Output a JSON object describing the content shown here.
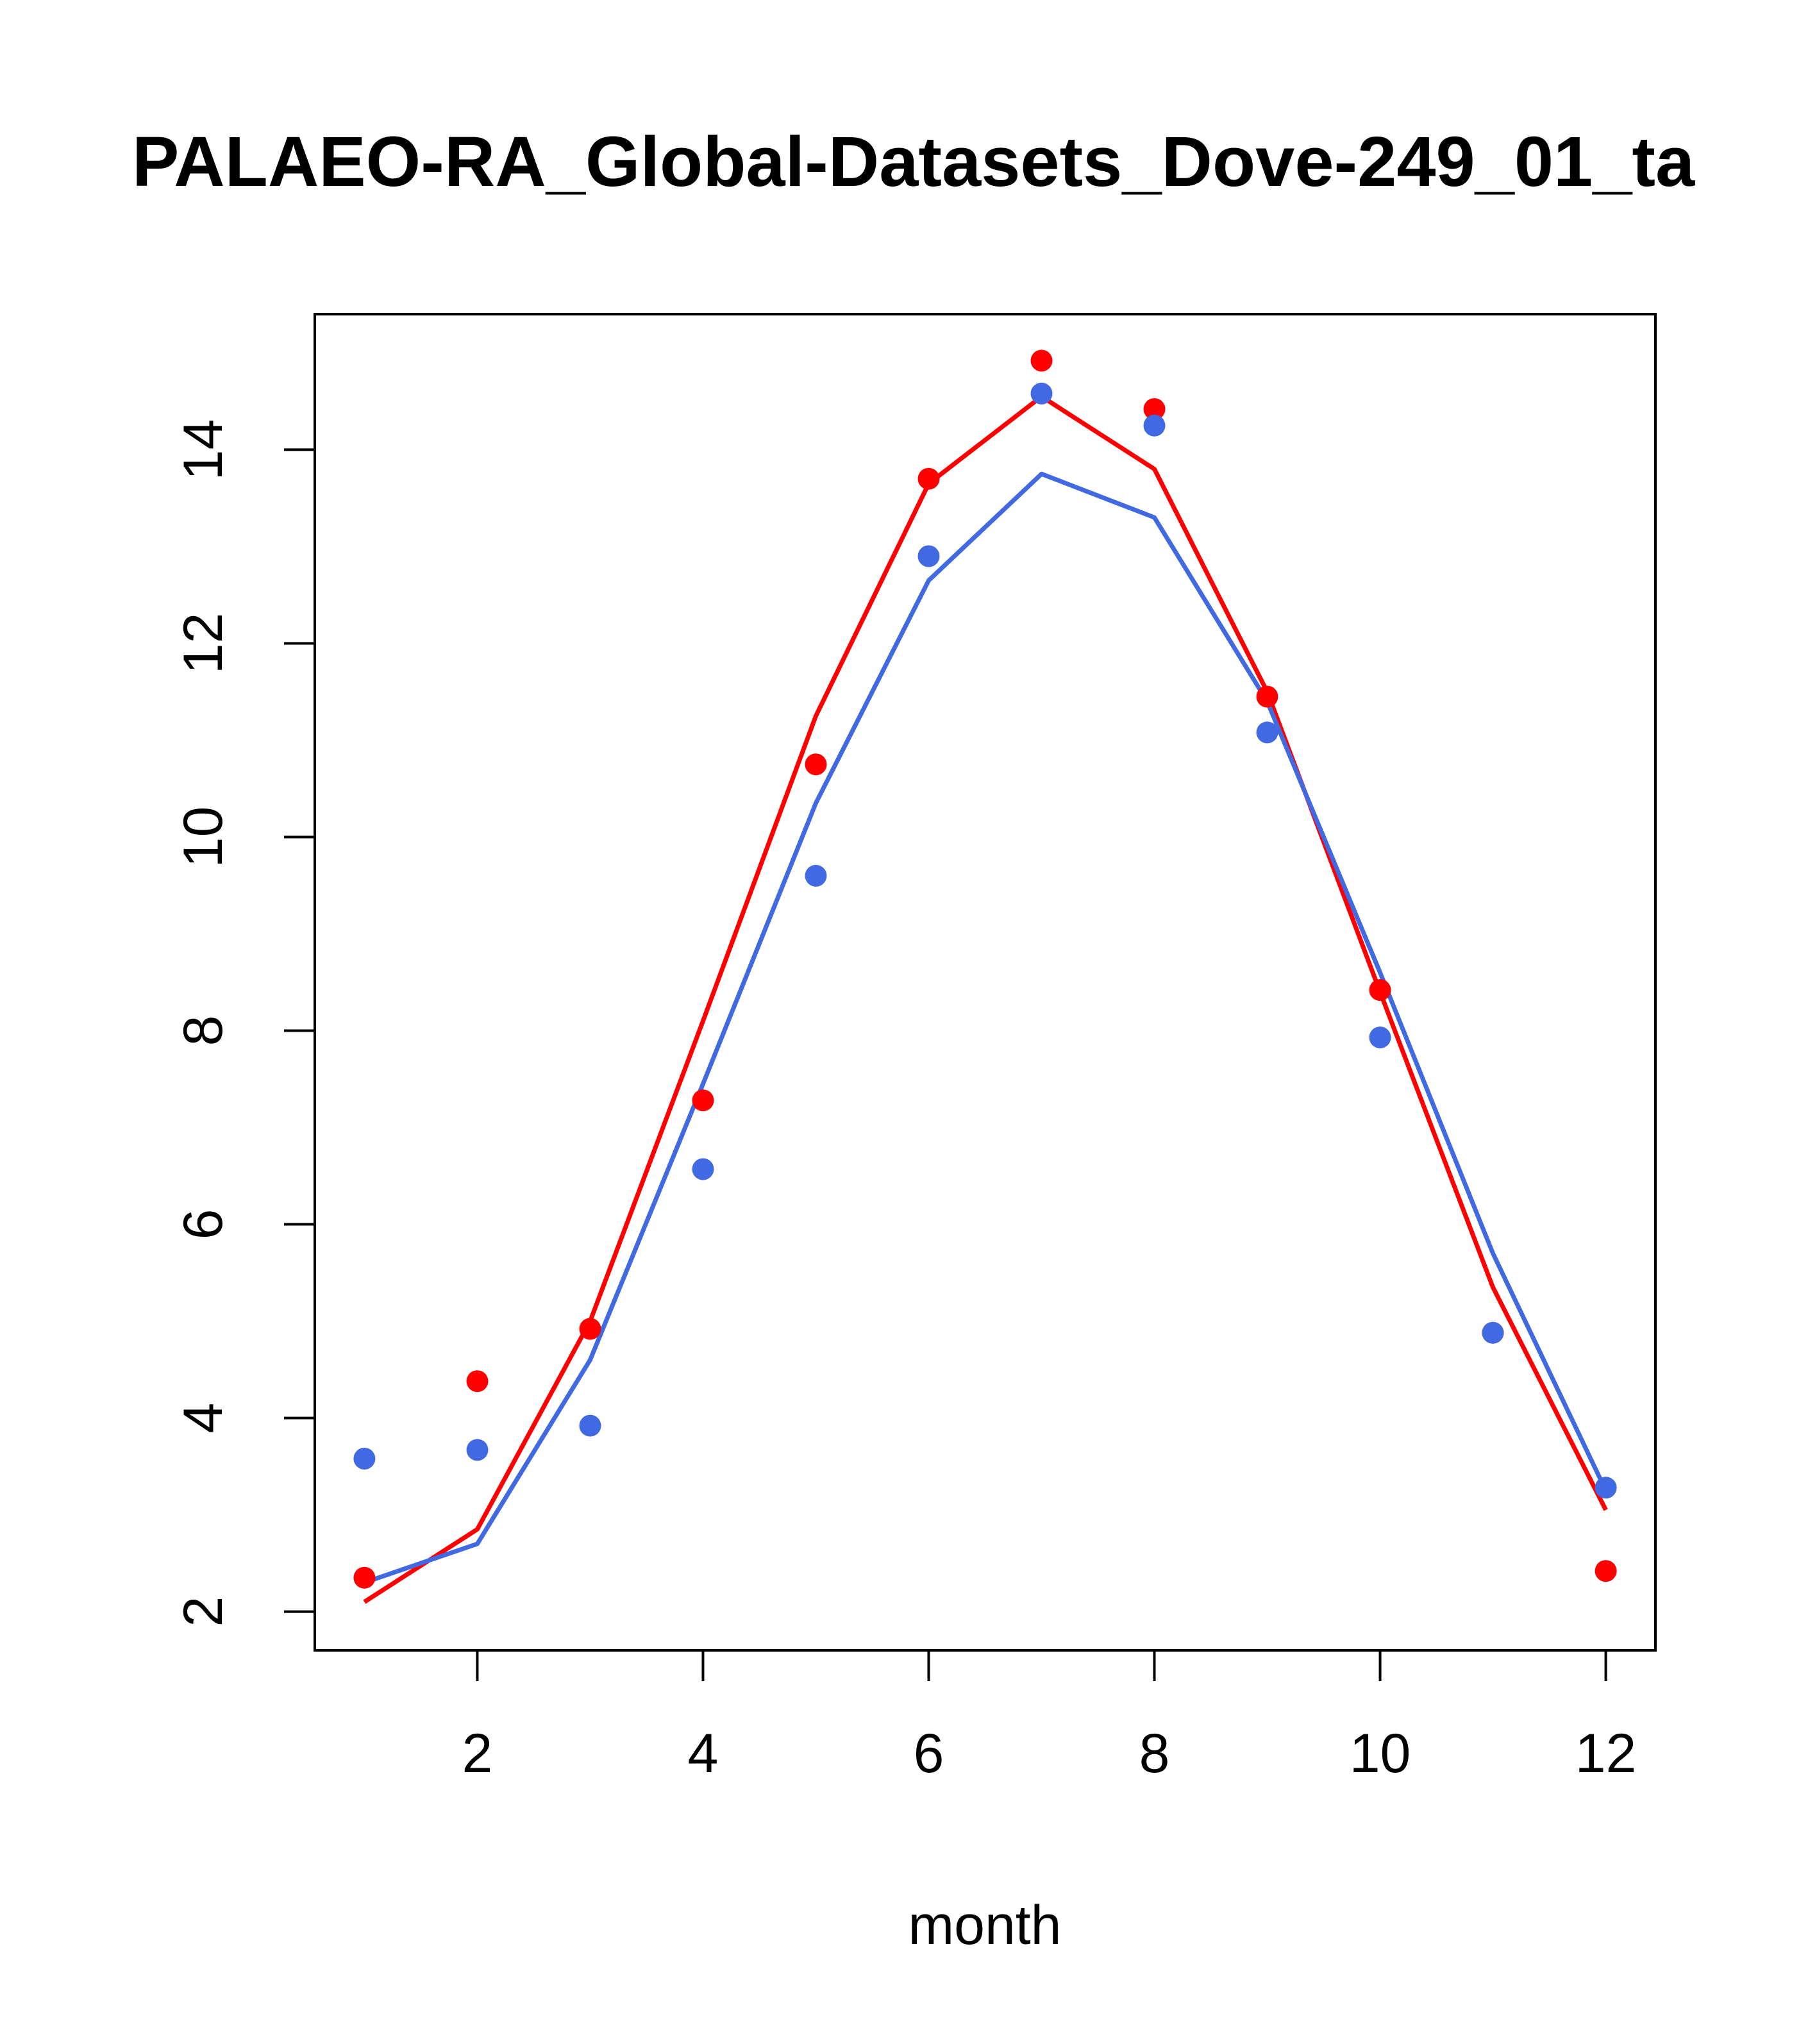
{
  "chart_data": {
    "type": "line",
    "title": "PALAEO-RA_Global-Datasets_Dove-249_01_ta",
    "xlabel": "month",
    "ylabel": "",
    "xlim": [
      0.56,
      12.44
    ],
    "ylim": [
      1.6,
      15.4
    ],
    "x_ticks": [
      2,
      4,
      6,
      8,
      10,
      12
    ],
    "y_ticks": [
      2,
      4,
      6,
      8,
      10,
      12,
      14
    ],
    "x": [
      1,
      2,
      3,
      4,
      5,
      6,
      7,
      8,
      9,
      10,
      11,
      12
    ],
    "grid": false,
    "legend": "none",
    "series": [
      {
        "mark": "line",
        "color": "#ff0000",
        "values": [
          2.1,
          2.85,
          5.0,
          8.1,
          11.25,
          13.65,
          14.55,
          13.8,
          11.5,
          8.4,
          5.35,
          3.05
        ]
      },
      {
        "mark": "line",
        "color": "#4169e1",
        "values": [
          2.3,
          2.7,
          4.6,
          7.45,
          10.35,
          12.65,
          13.75,
          13.3,
          11.4,
          8.6,
          5.7,
          3.25
        ]
      },
      {
        "mark": "points",
        "color": "#ff0000",
        "values": [
          2.35,
          4.38,
          4.92,
          7.28,
          10.75,
          13.7,
          14.92,
          14.42,
          11.45,
          8.42,
          4.88,
          2.42
        ]
      },
      {
        "mark": "points",
        "color": "#4169e1",
        "values": [
          3.58,
          3.67,
          3.92,
          6.57,
          9.6,
          12.9,
          14.58,
          14.25,
          11.08,
          7.93,
          4.88,
          3.28
        ]
      }
    ]
  }
}
